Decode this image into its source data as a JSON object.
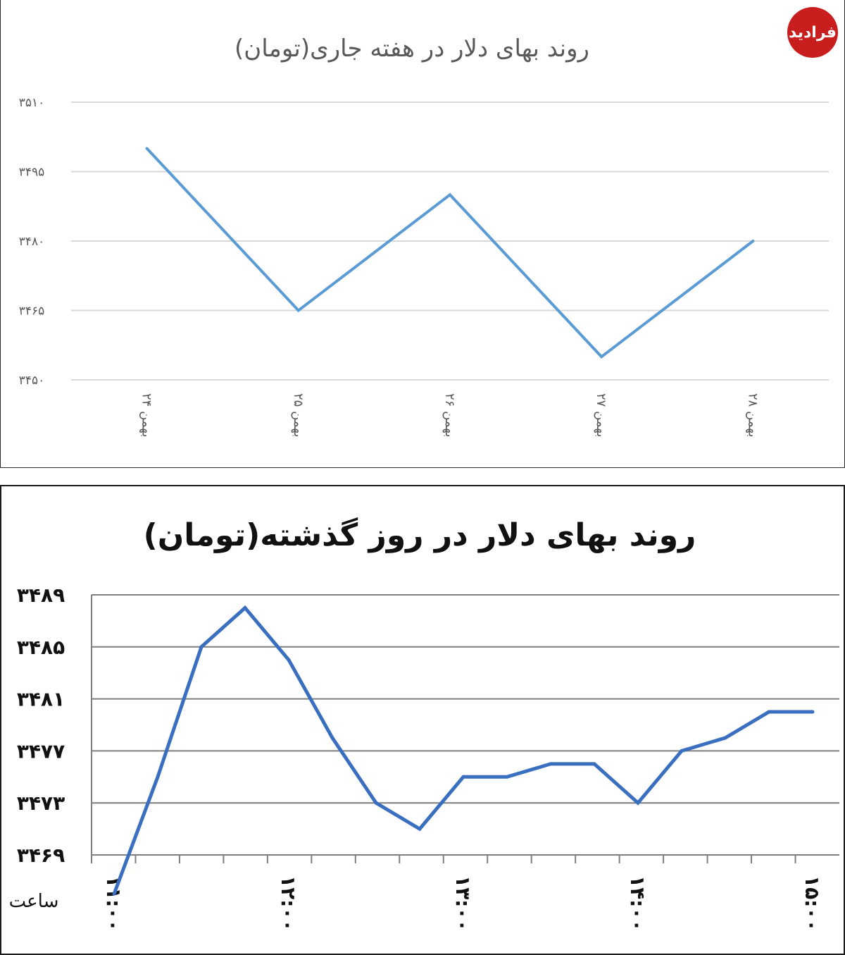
{
  "logo": {
    "text": "فرادید"
  },
  "chart_data": [
    {
      "type": "line",
      "title": "روند بهای دلار در هفته جاری(تومان)",
      "categories": [
        "۲۴ بهمن",
        "۲۵ بهمن",
        "۲۶ بهمن",
        "۲۷ بهمن",
        "۲۸ بهمن"
      ],
      "values": [
        3500,
        3465,
        3490,
        3455,
        3480
      ],
      "ylim": [
        3450,
        3510
      ],
      "yticks": [
        3450,
        3465,
        3480,
        3495,
        3510
      ],
      "ytick_labels": [
        "۳۴۵۰",
        "۳۴۶۵",
        "۳۴۸۰",
        "۳۴۹۵",
        "۳۵۱۰"
      ],
      "grid": true,
      "color": "#5b9bd5"
    },
    {
      "type": "line",
      "title": "روند بهای دلار در روز گذشته(تومان)",
      "xlabel": "ساعت",
      "x": [
        11.0,
        11.25,
        11.5,
        11.75,
        12.0,
        12.25,
        12.5,
        12.75,
        13.0,
        13.25,
        13.5,
        13.75,
        14.0,
        14.25,
        14.5,
        14.75,
        15.0
      ],
      "values": [
        3466,
        3475,
        3485,
        3488,
        3484,
        3478,
        3473,
        3471,
        3475,
        3475,
        3476,
        3476,
        3473,
        3477,
        3478,
        3480,
        3480
      ],
      "ylim": [
        3469,
        3489
      ],
      "yticks": [
        3469,
        3473,
        3477,
        3481,
        3485,
        3489
      ],
      "ytick_labels": [
        "۳۴۶۹",
        "۳۴۷۳",
        "۳۴۷۷",
        "۳۴۸۱",
        "۳۴۸۵",
        "۳۴۸۹"
      ],
      "xtick_values": [
        11,
        12,
        13,
        14,
        15
      ],
      "xtick_labels": [
        "۱۱:۰۰",
        "۱۲:۰۰",
        "۱۳:۰۰",
        "۱۴:۰۰",
        "۱۵:۰۰"
      ],
      "grid": true,
      "color": "#3a6fc0"
    }
  ]
}
